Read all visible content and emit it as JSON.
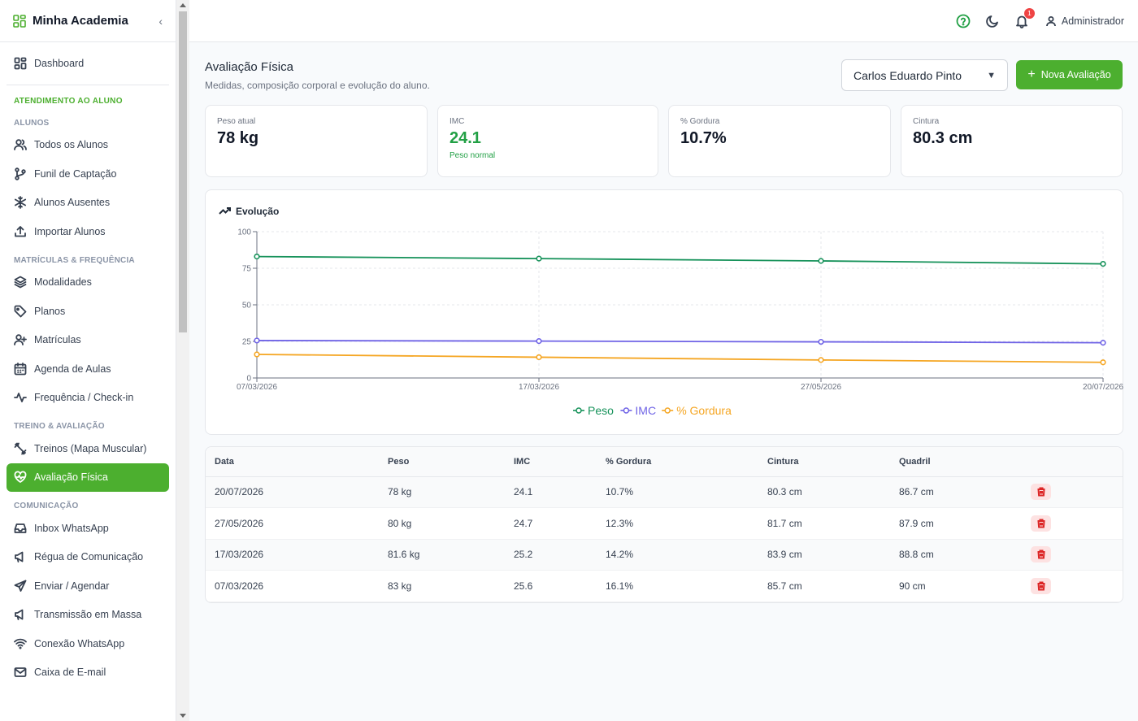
{
  "app": {
    "name": "Minha Academia",
    "collapse_glyph": "‹"
  },
  "sidebar": {
    "dashboard": "Dashboard",
    "section": "ATENDIMENTO AO ALUNO",
    "groups": {
      "alunos": "ALUNOS",
      "matriculas": "MATRÍCULAS & FREQUÊNCIA",
      "treino": "TREINO & AVALIAÇÃO",
      "comunicacao": "COMUNICAÇÃO"
    },
    "items": {
      "todos_alunos": "Todos os Alunos",
      "funil": "Funil de Captação",
      "ausentes": "Alunos Ausentes",
      "importar": "Importar Alunos",
      "modalidades": "Modalidades",
      "planos": "Planos",
      "matriculas": "Matrículas",
      "agenda": "Agenda de Aulas",
      "frequencia": "Frequência / Check-in",
      "treinos": "Treinos (Mapa Muscular)",
      "avaliacao": "Avaliação Física",
      "inbox": "Inbox WhatsApp",
      "regua": "Régua de Comunicação",
      "enviar": "Enviar / Agendar",
      "transmissao": "Transmissão em Massa",
      "conexao": "Conexão WhatsApp",
      "email": "Caixa de E-mail"
    }
  },
  "topbar": {
    "notifications_count": "1",
    "user": "Administrador"
  },
  "page": {
    "title": "Avaliação Física",
    "subtitle": "Medidas, composição corporal e evolução do aluno.",
    "student": "Carlos Eduardo Pinto",
    "new_button": "Nova Avaliação"
  },
  "cards": [
    {
      "label": "Peso atual",
      "value": "78 kg",
      "note": ""
    },
    {
      "label": "IMC",
      "value": "24.1",
      "note": "Peso normal"
    },
    {
      "label": "% Gordura",
      "value": "10.7%",
      "note": ""
    },
    {
      "label": "Cintura",
      "value": "80.3 cm",
      "note": ""
    }
  ],
  "chart_title": "Evolução",
  "chart_data": {
    "type": "line",
    "title": "Evolução",
    "x": [
      "07/03/2026",
      "17/03/2026",
      "27/05/2026",
      "20/07/2026"
    ],
    "ylim": [
      0,
      100
    ],
    "yticks": [
      0,
      25,
      50,
      75,
      100
    ],
    "grid": true,
    "legend": "bottom",
    "series": [
      {
        "name": "Peso",
        "color": "#16925a",
        "values": [
          83,
          81.6,
          80,
          78
        ]
      },
      {
        "name": "IMC",
        "color": "#6f63e6",
        "values": [
          25.6,
          25.2,
          24.7,
          24.1
        ]
      },
      {
        "name": "% Gordura",
        "color": "#f5a623",
        "values": [
          16.1,
          14.2,
          12.3,
          10.7
        ]
      }
    ]
  },
  "table": {
    "headers": [
      "Data",
      "Peso",
      "IMC",
      "% Gordura",
      "Cintura",
      "Quadril"
    ],
    "rows": [
      [
        "20/07/2026",
        "78 kg",
        "24.1",
        "10.7%",
        "80.3 cm",
        "86.7 cm"
      ],
      [
        "27/05/2026",
        "80 kg",
        "24.7",
        "12.3%",
        "81.7 cm",
        "87.9 cm"
      ],
      [
        "17/03/2026",
        "81.6 kg",
        "25.2",
        "14.2%",
        "83.9 cm",
        "88.8 cm"
      ],
      [
        "07/03/2026",
        "83 kg",
        "25.6",
        "16.1%",
        "85.7 cm",
        "90 cm"
      ]
    ]
  }
}
